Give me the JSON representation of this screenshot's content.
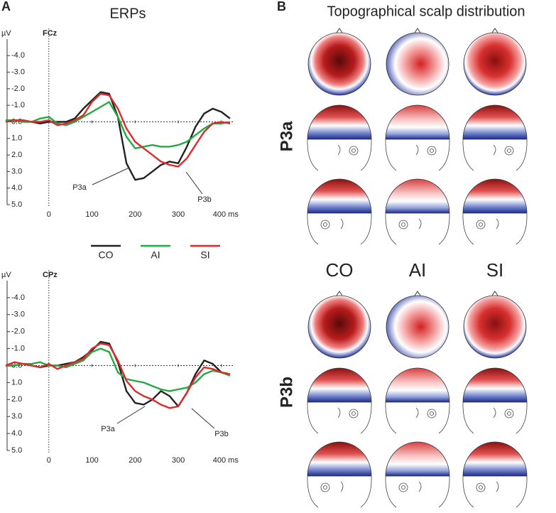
{
  "panel_labels": [
    "A",
    "B"
  ],
  "erp_title": "ERPs",
  "chart_data": [
    {
      "type": "line",
      "channel": "FCz",
      "y_label": "µV",
      "annotations": [
        "P3a",
        "P3b"
      ],
      "x": [
        -100,
        -80,
        -60,
        -40,
        -20,
        0,
        20,
        40,
        60,
        80,
        100,
        120,
        140,
        160,
        180,
        200,
        220,
        240,
        260,
        280,
        300,
        320,
        340,
        360,
        380,
        400,
        420
      ],
      "xlim": [
        -100,
        430
      ],
      "xticks": [
        0,
        100,
        200,
        300,
        {
          "value": 400,
          "label": "400 ms"
        }
      ],
      "ylim": [
        5,
        -5
      ],
      "yticks": [
        {
          "value": -4,
          "label": "-4.0"
        },
        {
          "value": -3,
          "label": "-3.0"
        },
        {
          "value": -2,
          "label": "-2.0"
        },
        {
          "value": -1,
          "label": "-1.0"
        },
        {
          "value": 0,
          "label": "0.0"
        },
        {
          "value": 1,
          "label": "1.0"
        },
        {
          "value": 2,
          "label": "2.0"
        },
        {
          "value": 3,
          "label": "3.0"
        },
        {
          "value": 4,
          "label": "4.0"
        },
        {
          "value": 5,
          "label": "5.0"
        }
      ],
      "series": [
        {
          "name": "CO",
          "color": "#222222",
          "values": [
            0,
            -0.1,
            -0.1,
            0,
            0.1,
            0,
            0,
            0,
            -0.2,
            -0.8,
            -1.3,
            -1.8,
            -1.7,
            -0.3,
            2.5,
            3.5,
            3.4,
            3.0,
            2.6,
            2.4,
            2.5,
            1.5,
            0.3,
            -0.5,
            -0.8,
            -0.6,
            -0.2
          ]
        },
        {
          "name": "AI",
          "color": "#22aa44",
          "values": [
            -0.1,
            -0.1,
            0,
            0,
            -0.2,
            -0.3,
            0.1,
            0.2,
            0,
            -0.3,
            -0.6,
            -0.9,
            -1.2,
            -0.3,
            0.9,
            1.6,
            1.5,
            1.4,
            1.5,
            1.5,
            1.4,
            1.2,
            0.8,
            0.4,
            0.1,
            0.1,
            0
          ]
        },
        {
          "name": "SI",
          "color": "#dd2a2a",
          "values": [
            0,
            -0.1,
            -0.1,
            0,
            0,
            -0.1,
            0.2,
            0.1,
            -0.1,
            -0.4,
            -1.2,
            -1.7,
            -1.6,
            -0.8,
            0.4,
            1.2,
            1.6,
            2.0,
            2.4,
            2.6,
            2.7,
            2.2,
            1.4,
            0.6,
            0.1,
            0,
            0.1
          ]
        }
      ]
    },
    {
      "type": "line",
      "channel": "CPz",
      "y_label": "µV",
      "annotations": [
        "P3a",
        "P3b"
      ],
      "x": [
        -100,
        -80,
        -60,
        -40,
        -20,
        0,
        20,
        40,
        60,
        80,
        100,
        120,
        140,
        160,
        180,
        200,
        220,
        240,
        260,
        280,
        300,
        320,
        340,
        360,
        380,
        400,
        420
      ],
      "xlim": [
        -100,
        430
      ],
      "xticks": [
        0,
        100,
        200,
        300,
        {
          "value": 400,
          "label": "400 ms"
        }
      ],
      "ylim": [
        5,
        -5
      ],
      "yticks": [
        {
          "value": -4,
          "label": "-4.0"
        },
        {
          "value": -3,
          "label": "-3.0"
        },
        {
          "value": -2,
          "label": "-2.0"
        },
        {
          "value": -1,
          "label": "-1.0"
        },
        {
          "value": 0,
          "label": "0.0"
        },
        {
          "value": 1,
          "label": "1.0"
        },
        {
          "value": 2,
          "label": "2.0"
        },
        {
          "value": 3,
          "label": "3.0"
        },
        {
          "value": 4,
          "label": "4.0"
        },
        {
          "value": 5,
          "label": "5.0"
        }
      ],
      "series": [
        {
          "color": "#222222",
          "values": [
            0,
            0,
            -0.1,
            0,
            0.1,
            0,
            0,
            -0.1,
            -0.2,
            -0.5,
            -0.9,
            -1.4,
            -1.3,
            -0.2,
            1.5,
            2.2,
            2.3,
            2.0,
            1.5,
            1.8,
            2.4,
            1.6,
            0.5,
            -0.3,
            -0.1,
            0.4,
            0.5
          ]
        },
        {
          "color": "#22aa44",
          "values": [
            0,
            0,
            -0.1,
            -0.1,
            -0.2,
            0,
            0,
            0.1,
            -0.1,
            -0.3,
            -0.8,
            -1.0,
            -0.8,
            0.4,
            0.8,
            0.9,
            1.0,
            1.2,
            1.4,
            1.5,
            1.4,
            1.3,
            1.0,
            0.5,
            0.3,
            0.4,
            0.6
          ]
        },
        {
          "color": "#dd2a2a",
          "values": [
            0,
            -0.2,
            -0.1,
            0,
            0.1,
            -0.1,
            0.2,
            0,
            -0.2,
            -0.4,
            -1.0,
            -1.3,
            -1.2,
            -0.3,
            0.9,
            1.5,
            1.8,
            2.0,
            2.3,
            2.5,
            2.4,
            1.6,
            0.7,
            0.1,
            0.2,
            0.4,
            0.5
          ]
        }
      ]
    }
  ],
  "topo": {
    "title": "Topographical scalp distribution",
    "components": [
      "P3a",
      "P3b"
    ],
    "conditions": [
      "CO",
      "AI",
      "SI"
    ]
  }
}
